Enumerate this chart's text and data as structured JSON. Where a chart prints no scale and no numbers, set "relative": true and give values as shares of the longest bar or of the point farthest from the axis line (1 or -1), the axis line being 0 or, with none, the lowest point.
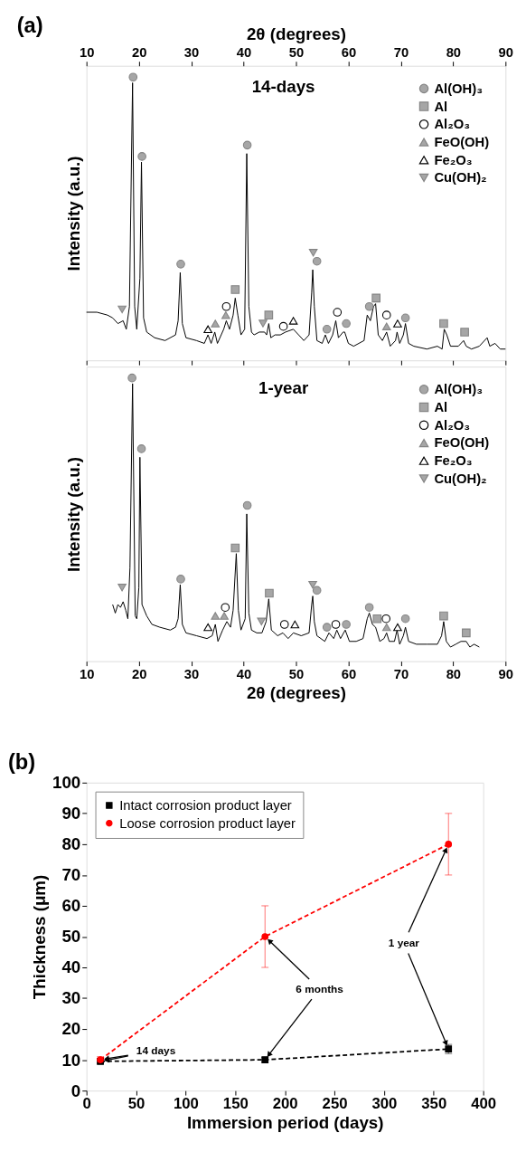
{
  "chart_data": [
    {
      "type": "line",
      "title": "14-days",
      "ylabel": "Intensity (a.u.)",
      "relative": true,
      "xlim": [
        10,
        90
      ],
      "xticks": [
        10,
        20,
        30,
        40,
        50,
        60,
        70,
        80,
        90
      ],
      "x2lim": [
        10,
        90
      ],
      "x2ticks": [
        10,
        20,
        30,
        40,
        50,
        60,
        70,
        80,
        90
      ],
      "x2label": "2θ (degrees)",
      "tick_labels": false,
      "legend": "top right",
      "grid": false,
      "annotations": [
        "(a)"
      ],
      "series": [
        {
          "type": "line",
          "color": "#000000",
          "marker": "none",
          "x": [
            10,
            12,
            14,
            15,
            16,
            17,
            17.6,
            18.2,
            18.8,
            19.2,
            19.6,
            20.2,
            20.5,
            20.9,
            21.5,
            23,
            25,
            27,
            27.5,
            27.9,
            28.3,
            29,
            31,
            32.5,
            33.2,
            33.8,
            34.5,
            35,
            36.2,
            36.7,
            37.3,
            38.0,
            38.4,
            38.9,
            39.5,
            40.2,
            40.6,
            41.0,
            41.5,
            42,
            43,
            44,
            44.4,
            44.8,
            45.2,
            46,
            47,
            48,
            49.5,
            50.5,
            51.5,
            52.5,
            53.0,
            53.2,
            53.5,
            54,
            55,
            55.6,
            56.2,
            57,
            57.6,
            58.1,
            59,
            59.3,
            60,
            61,
            62,
            63,
            63.6,
            64.2,
            64.8,
            65.2,
            65.7,
            66.5,
            67.3,
            68,
            69,
            69.3,
            69.8,
            70.5,
            70.9,
            71.5,
            72.5,
            75,
            77,
            77.9,
            78.3,
            78.8,
            79.5,
            81,
            82,
            82.5,
            83.5,
            85,
            86.5,
            87,
            88,
            89,
            90
          ],
          "values": [
            0.17,
            0.17,
            0.16,
            0.15,
            0.13,
            0.14,
            0.11,
            0.19,
            0.98,
            0.19,
            0.11,
            0.29,
            0.7,
            0.15,
            0.1,
            0.08,
            0.07,
            0.09,
            0.14,
            0.31,
            0.13,
            0.08,
            0.07,
            0.06,
            0.09,
            0.06,
            0.1,
            0.06,
            0.11,
            0.14,
            0.11,
            0.16,
            0.22,
            0.16,
            0.09,
            0.11,
            0.73,
            0.19,
            0.1,
            0.09,
            0.1,
            0.1,
            0.09,
            0.13,
            0.08,
            0.09,
            0.09,
            0.1,
            0.11,
            0.09,
            0.07,
            0.09,
            0.24,
            0.32,
            0.19,
            0.07,
            0.06,
            0.09,
            0.06,
            0.09,
            0.14,
            0.08,
            0.1,
            0.1,
            0.06,
            0.05,
            0.06,
            0.07,
            0.16,
            0.14,
            0.19,
            0.2,
            0.09,
            0.07,
            0.1,
            0.05,
            0.07,
            0.1,
            0.06,
            0.09,
            0.13,
            0.06,
            0.05,
            0.04,
            0.05,
            0.04,
            0.11,
            0.09,
            0.05,
            0.05,
            0.07,
            0.05,
            0.04,
            0.05,
            0.08,
            0.05,
            0.06,
            0.04,
            0.04
          ]
        },
        {
          "type": "scatter",
          "name": "Al(OH)₃",
          "color": "#a6a6a6",
          "marker": "circle",
          "x": [
            18.9,
            20.6,
            28.0,
            40.7,
            54.0,
            55.9,
            59.6,
            64.0,
            70.9
          ],
          "values": [
            1.0,
            0.72,
            0.34,
            0.76,
            0.35,
            0.11,
            0.13,
            0.19,
            0.15
          ]
        },
        {
          "type": "scatter",
          "name": "Al",
          "color": "#a6a6a6",
          "marker": "square",
          "x": [
            38.4,
            44.8,
            65.3,
            78.2,
            82.2
          ],
          "values": [
            0.25,
            0.16,
            0.22,
            0.13,
            0.1
          ]
        },
        {
          "type": "scatter",
          "name": "Al₂O₃",
          "color": "#ffffff",
          "marker": "circle",
          "x": [
            36.7,
            47.6,
            57.9,
            67.3
          ],
          "values": [
            0.19,
            0.12,
            0.17,
            0.16
          ]
        },
        {
          "type": "scatter",
          "name": "FeO(OH)",
          "color": "#a6a6a6",
          "marker": "triangle",
          "x": [
            34.6,
            36.6,
            67.3
          ],
          "values": [
            0.13,
            0.16,
            0.12
          ]
        },
        {
          "type": "scatter",
          "name": "Fe₂O₃",
          "color": "#ffffff",
          "marker": "triangle",
          "x": [
            33.2,
            49.5,
            69.4
          ],
          "values": [
            0.11,
            0.14,
            0.13
          ]
        },
        {
          "type": "scatter",
          "name": "Cu(OH)₂",
          "color": "#a6a6a6",
          "marker": "triangle-down",
          "x": [
            16.8,
            43.7,
            53.3
          ],
          "values": [
            0.18,
            0.13,
            0.38
          ]
        }
      ]
    },
    {
      "type": "line",
      "title": "1-year",
      "xlabel": "2θ (degrees)",
      "ylabel": "Intensity (a.u.)",
      "relative": true,
      "xlim": [
        10,
        90
      ],
      "xticks": [
        10,
        20,
        30,
        40,
        50,
        60,
        70,
        80,
        90
      ],
      "legend": "top right",
      "grid": false,
      "series": [
        {
          "type": "line",
          "color": "#000000",
          "marker": "none",
          "x": [
            15.0,
            15.5,
            16.0,
            16.5,
            17.0,
            17.5,
            17.9,
            18.3,
            18.8,
            19.3,
            19.6,
            20.0,
            20.2,
            20.6,
            21.5,
            22.5,
            24,
            26,
            27,
            27.5,
            27.9,
            28.3,
            29,
            31,
            33,
            34.0,
            34.6,
            35.1,
            36,
            36.8,
            37.5,
            38.0,
            38.6,
            39.0,
            39.5,
            40.3,
            40.6,
            41.0,
            41.5,
            42.5,
            43.5,
            44.3,
            44.8,
            45.3,
            46.5,
            47.5,
            48.5,
            49.5,
            51,
            52.5,
            53.0,
            53.2,
            53.5,
            54,
            55.5,
            56.3,
            57.2,
            57.8,
            58.5,
            59.4,
            60.2,
            61.5,
            62.8,
            63.6,
            64.0,
            64.6,
            65.2,
            66,
            66.8,
            67.3,
            67.8,
            68.8,
            69.3,
            69.8,
            70.5,
            70.9,
            71.5,
            73,
            75,
            77,
            77.8,
            78.2,
            78.7,
            79.5,
            80.5,
            81.5,
            82.5,
            83.2,
            84,
            85
          ],
          "values": [
            0.2,
            0.17,
            0.2,
            0.19,
            0.21,
            0.18,
            0.15,
            0.33,
            0.98,
            0.16,
            0.15,
            0.26,
            0.72,
            0.2,
            0.16,
            0.13,
            0.12,
            0.11,
            0.12,
            0.15,
            0.27,
            0.13,
            0.1,
            0.09,
            0.08,
            0.09,
            0.13,
            0.07,
            0.11,
            0.14,
            0.12,
            0.18,
            0.38,
            0.18,
            0.11,
            0.15,
            0.52,
            0.17,
            0.11,
            0.1,
            0.1,
            0.14,
            0.22,
            0.11,
            0.09,
            0.1,
            0.08,
            0.1,
            0.09,
            0.1,
            0.2,
            0.23,
            0.14,
            0.09,
            0.07,
            0.1,
            0.08,
            0.11,
            0.08,
            0.11,
            0.07,
            0.07,
            0.08,
            0.15,
            0.17,
            0.13,
            0.12,
            0.07,
            0.08,
            0.1,
            0.07,
            0.07,
            0.11,
            0.06,
            0.09,
            0.12,
            0.07,
            0.06,
            0.06,
            0.06,
            0.09,
            0.14,
            0.07,
            0.05,
            0.06,
            0.07,
            0.07,
            0.05,
            0.06,
            0.05
          ]
        },
        {
          "type": "scatter",
          "name": "Al(OH)₃",
          "color": "#a6a6a6",
          "marker": "circle",
          "x": [
            18.7,
            20.5,
            28.0,
            40.7,
            54.0,
            55.9,
            59.6,
            64.0,
            70.9
          ],
          "values": [
            1.0,
            0.75,
            0.29,
            0.55,
            0.25,
            0.12,
            0.13,
            0.19,
            0.15
          ]
        },
        {
          "type": "scatter",
          "name": "Al",
          "color": "#a6a6a6",
          "marker": "square",
          "x": [
            38.4,
            44.9,
            65.5,
            78.2,
            82.5
          ],
          "values": [
            0.4,
            0.24,
            0.15,
            0.16,
            0.1
          ]
        },
        {
          "type": "scatter",
          "name": "Al₂O₃",
          "color": "#ffffff",
          "marker": "circle",
          "x": [
            36.5,
            47.8,
            57.6,
            67.2
          ],
          "values": [
            0.19,
            0.13,
            0.13,
            0.15
          ]
        },
        {
          "type": "scatter",
          "name": "FeO(OH)",
          "color": "#a6a6a6",
          "marker": "triangle",
          "x": [
            34.6,
            36.3,
            67.3
          ],
          "values": [
            0.16,
            0.16,
            0.12
          ]
        },
        {
          "type": "scatter",
          "name": "Fe₂O₃",
          "color": "#ffffff",
          "marker": "triangle",
          "x": [
            33.2,
            49.8,
            69.4
          ],
          "values": [
            0.12,
            0.13,
            0.12
          ]
        },
        {
          "type": "scatter",
          "name": "Cu(OH)₂",
          "color": "#a6a6a6",
          "marker": "triangle-down",
          "x": [
            16.8,
            43.4,
            53.2
          ],
          "values": [
            0.26,
            0.14,
            0.27
          ]
        }
      ]
    },
    {
      "type": "line",
      "xlabel": "Immersion period (days)",
      "ylabel": "Thickness (μm)",
      "xlim": [
        0,
        400
      ],
      "ylim": [
        0,
        100
      ],
      "xticks": [
        0,
        50,
        100,
        150,
        200,
        250,
        300,
        350,
        400
      ],
      "yticks": [
        0,
        10,
        20,
        30,
        40,
        50,
        60,
        70,
        80,
        90,
        100
      ],
      "legend": "top left",
      "grid": false,
      "line_style": "dashed",
      "annotations": [
        "(b)",
        {
          "text": "14 days",
          "x": 14,
          "y": 10
        },
        {
          "text": "6 months",
          "x": 180,
          "y": 50
        },
        {
          "text": "1 year",
          "x": 365,
          "y": 80
        }
      ],
      "series": [
        {
          "name": "Intact corrosion product layer",
          "color": "#000000",
          "marker": "square",
          "x": [
            14,
            180,
            365
          ],
          "values": [
            9.5,
            10,
            13.5
          ],
          "errors": [
            0.8,
            0.8,
            1.5
          ]
        },
        {
          "name": "Loose corrosion product layer",
          "color": "#ff0000",
          "marker": "circle",
          "x": [
            14,
            180,
            365
          ],
          "values": [
            10,
            50,
            80
          ],
          "errors": [
            1,
            10,
            10
          ]
        }
      ]
    }
  ]
}
